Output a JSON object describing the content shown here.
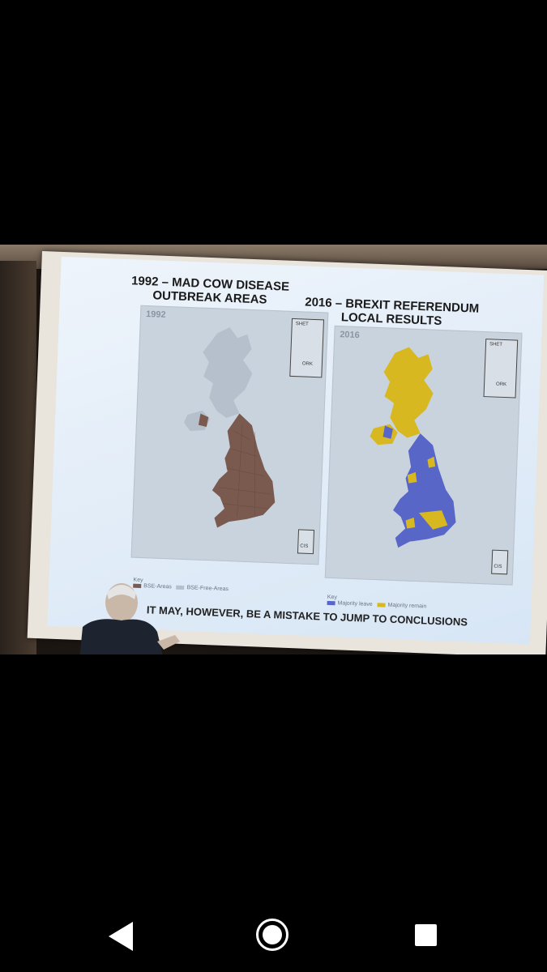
{
  "slide": {
    "title_left_line1": "1992 – MAD COW DISEASE",
    "title_left_line2": "OUTBREAK AREAS",
    "title_right_line1": "2016 – BREXIT REFERENDUM",
    "title_right_line2": "LOCAL RESULTS",
    "year_left": "1992",
    "year_right": "2016",
    "inset_top_label1": "SHET",
    "inset_top_label2": "ORK",
    "inset_bottom_label": "CIS",
    "key_label": "Key",
    "key_left": [
      "BSE-Areas",
      "BSE-Free-Areas"
    ],
    "key_right": [
      "Majority leave",
      "Majority remain"
    ],
    "caption": "IT MAY, HOWEVER, BE A MISTAKE TO JUMP TO CONCLUSIONS"
  },
  "colors": {
    "bse": "#7a5a4e",
    "bse_free": "#b6bfcc",
    "leave": "#5866c8",
    "remain": "#d8b820"
  },
  "nav": {
    "back": "back-icon",
    "home": "home-icon",
    "recents": "recents-icon"
  }
}
